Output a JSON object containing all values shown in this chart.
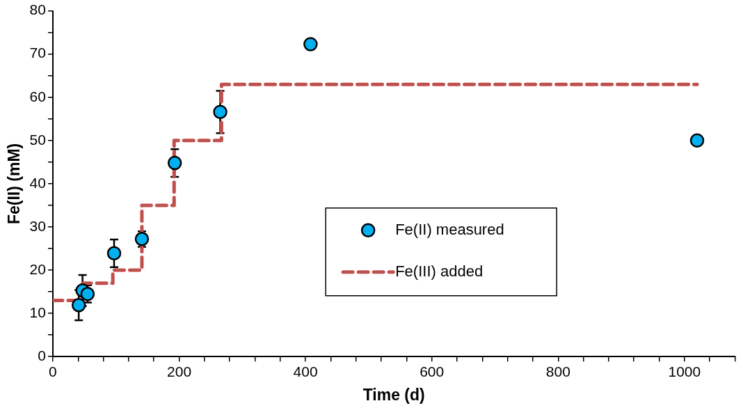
{
  "chart_data": {
    "type": "scatter",
    "xlabel": "Time (d)",
    "ylabel": "Fe(II) (mM)",
    "xlim": [
      0,
      1080
    ],
    "xticks": [
      0,
      {
        "value": 40,
        "label": null
      },
      {
        "value": 80,
        "label": null
      },
      {
        "value": 120,
        "label": null
      },
      {
        "value": 160,
        "label": null
      },
      200,
      {
        "value": 240,
        "label": null
      },
      {
        "value": 280,
        "label": null
      },
      {
        "value": 320,
        "label": null
      },
      {
        "value": 360,
        "label": null
      },
      400,
      {
        "value": 440,
        "label": null
      },
      {
        "value": 480,
        "label": null
      },
      {
        "value": 520,
        "label": null
      },
      {
        "value": 560,
        "label": null
      },
      600,
      {
        "value": 640,
        "label": null
      },
      {
        "value": 680,
        "label": null
      },
      {
        "value": 720,
        "label": null
      },
      {
        "value": 760,
        "label": null
      },
      800,
      {
        "value": 840,
        "label": null
      },
      {
        "value": 880,
        "label": null
      },
      {
        "value": 920,
        "label": null
      },
      {
        "value": 960,
        "label": null
      },
      1000,
      {
        "value": 1040,
        "label": null
      },
      {
        "value": 1080,
        "label": null
      }
    ],
    "ylim": [
      0,
      80
    ],
    "yticks": [
      0,
      {
        "value": 5,
        "label": null
      },
      10,
      {
        "value": 15,
        "label": null
      },
      20,
      {
        "value": 25,
        "label": null
      },
      30,
      {
        "value": 35,
        "label": null
      },
      40,
      {
        "value": 45,
        "label": null
      },
      50,
      {
        "value": 55,
        "label": null
      },
      60,
      {
        "value": 65,
        "label": null
      },
      70,
      {
        "value": 75,
        "label": null
      },
      80
    ],
    "grid": false,
    "legend": "center right",
    "series": [
      {
        "name": "Fe(II) measured",
        "type": "scatter",
        "color": "#00b0f0",
        "marker": "circle",
        "x": [
          41,
          47,
          55,
          97,
          141,
          193,
          265,
          408,
          1020
        ],
        "values": [
          11.9,
          15.3,
          14.5,
          23.9,
          27.2,
          44.8,
          56.6,
          72.3,
          50.0
        ],
        "errors": [
          3.5,
          3.6,
          2.0,
          3.2,
          1.8,
          3.2,
          4.9,
          null,
          null
        ]
      },
      {
        "name": "Fe(III) added",
        "type": "step",
        "color": "#c0504d",
        "line_style": "dashed",
        "marker": "none",
        "x": [
          0,
          47,
          95,
          141,
          192,
          267,
          1020
        ],
        "values": [
          13,
          17,
          20,
          35,
          50,
          63,
          63
        ]
      }
    ]
  }
}
